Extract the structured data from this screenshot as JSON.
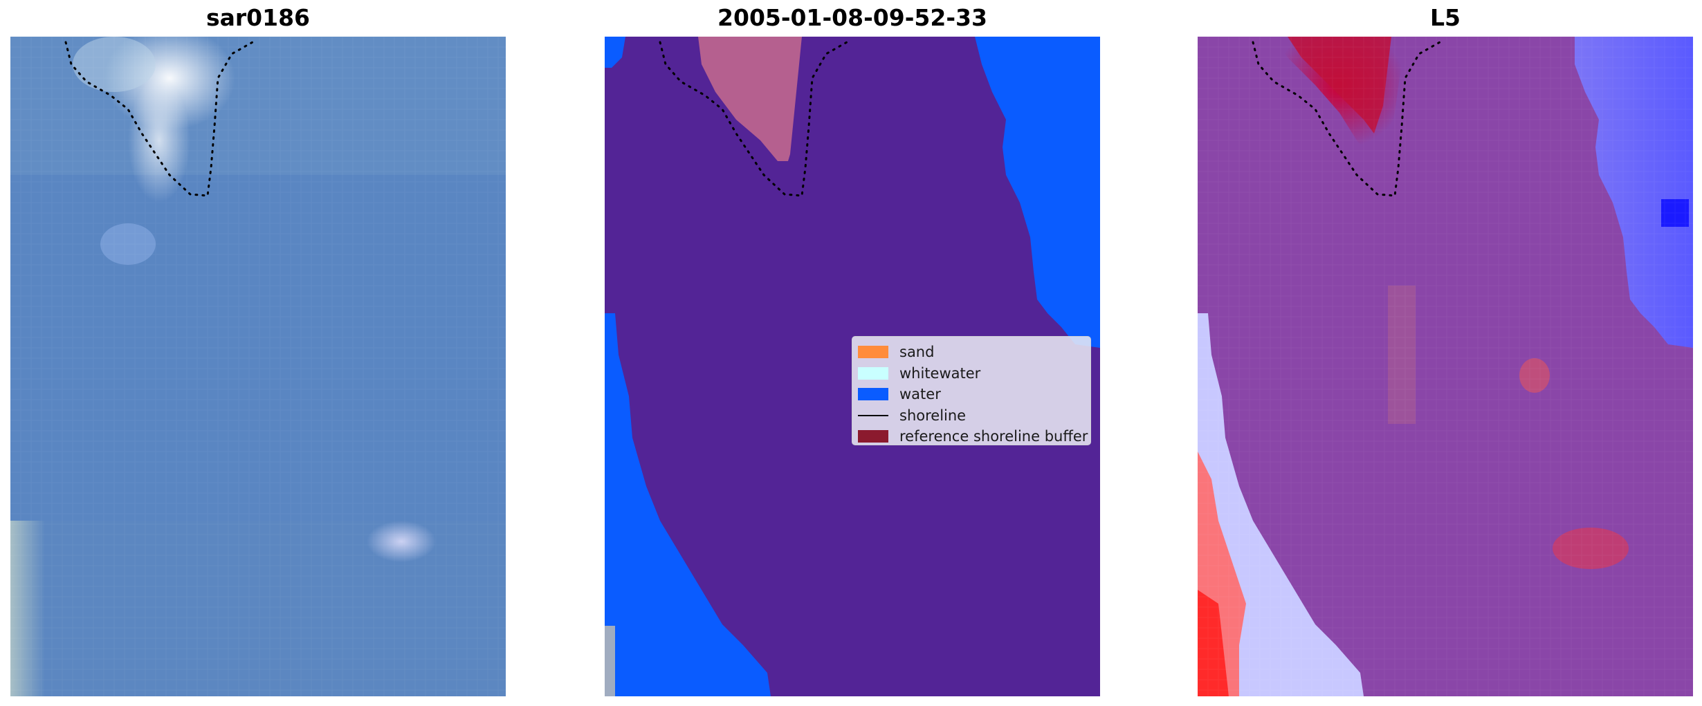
{
  "panels": [
    {
      "title": "sar0186"
    },
    {
      "title": "2005-01-08-09-52-33"
    },
    {
      "title": "L5"
    }
  ],
  "legend": {
    "items": [
      {
        "label": "sand",
        "color": "#ff8c3b",
        "kind": "patch"
      },
      {
        "label": "whitewater",
        "color": "#c9ffff",
        "kind": "patch"
      },
      {
        "label": "water",
        "color": "#0a5cff",
        "kind": "patch"
      },
      {
        "label": "shoreline",
        "color": "#000000",
        "kind": "line"
      },
      {
        "label": "reference shoreline buffer",
        "color": "#8b1a2e",
        "kind": "patch"
      }
    ]
  },
  "colors": {
    "land_class": "#532496",
    "water": "#0a5cff",
    "reference_buffer_overlay": "#b5608f",
    "satellite_base": "#5a86c2",
    "index_base": "#8a46a8",
    "index_high": "#cc0033",
    "index_low": "#5a5aff"
  }
}
